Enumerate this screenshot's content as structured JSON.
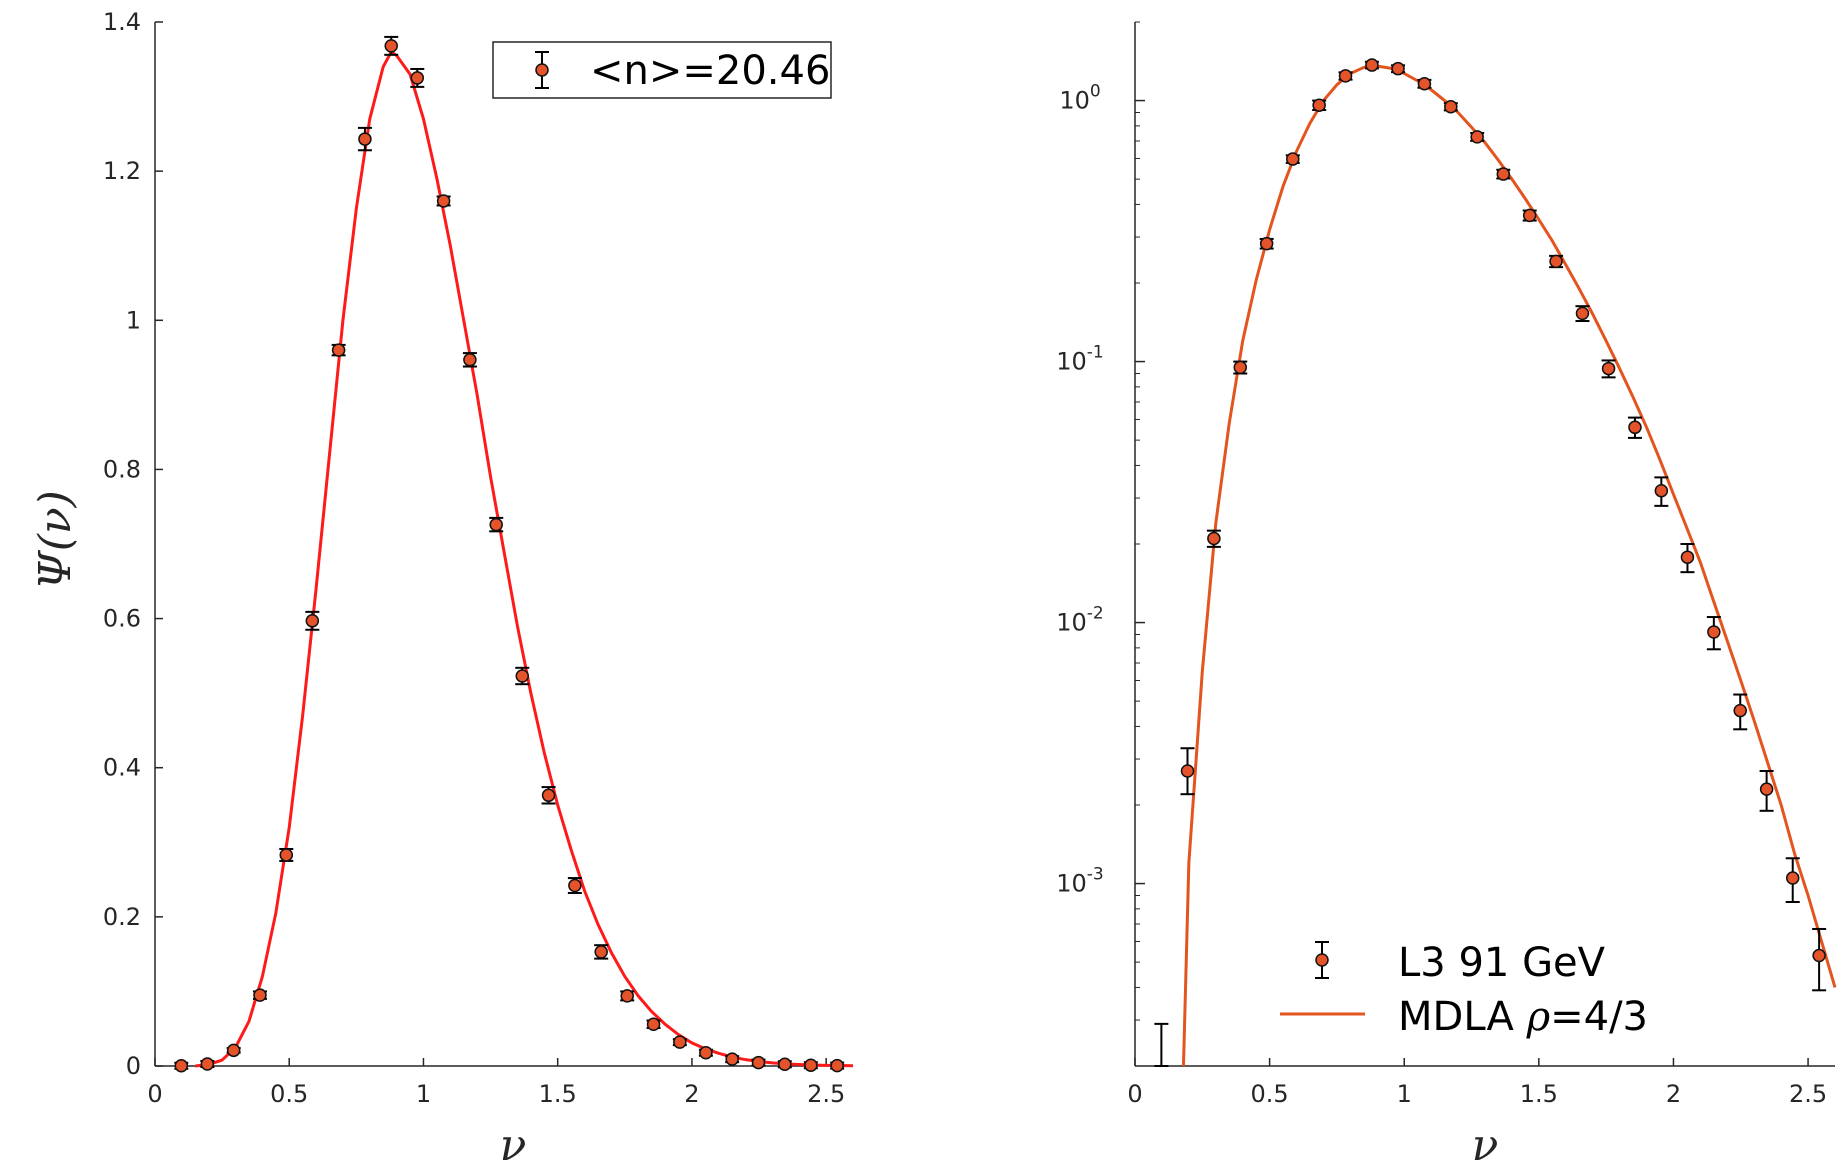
{
  "colors": {
    "marker_fill": "#e5532a",
    "marker_stroke": "#111111",
    "errorbar": "#000000",
    "left_curve": "#ff1a1a",
    "right_curve": "#e4541f",
    "axis": "#262626"
  },
  "chart_data": [
    {
      "type": "scatter",
      "title": "",
      "xlabel": "ν",
      "ylabel": "Ψ(ν)",
      "xlim": [
        0,
        2.6
      ],
      "ylim": [
        0,
        1.4
      ],
      "yscale": "linear",
      "grid": false,
      "legend_position": "top-right",
      "x_ticks": [
        "0",
        "0.5",
        "1",
        "1.5",
        "2",
        "2.5"
      ],
      "x_tick_values": [
        0,
        0.5,
        1,
        1.5,
        2,
        2.5
      ],
      "y_ticks": [
        "0",
        "0.2",
        "0.4",
        "0.6",
        "0.8",
        "1",
        "1.2",
        "1.4"
      ],
      "y_tick_values": [
        0,
        0.2,
        0.4,
        0.6,
        0.8,
        1,
        1.2,
        1.4
      ],
      "legend": [
        {
          "label": "<n>=20.46",
          "symbol": "errorbar-marker"
        }
      ],
      "series": [
        {
          "name": "<n>=20.46",
          "kind": "errorbar-points",
          "x": [
            0.098,
            0.195,
            0.293,
            0.391,
            0.489,
            0.586,
            0.684,
            0.782,
            0.88,
            0.977,
            1.075,
            1.173,
            1.271,
            1.368,
            1.466,
            1.564,
            1.662,
            1.759,
            1.857,
            1.955,
            2.052,
            2.15,
            2.248,
            2.346,
            2.443,
            2.541
          ],
          "y": [
            0.0003,
            0.0027,
            0.021,
            0.095,
            0.283,
            0.597,
            0.96,
            1.243,
            1.368,
            1.325,
            1.16,
            0.947,
            0.726,
            0.523,
            0.363,
            0.242,
            0.153,
            0.094,
            0.056,
            0.032,
            0.0178,
            0.0092,
            0.0046,
            0.0023,
            0.00105,
            0.00053
          ],
          "err": [
            0.0003,
            0.0005,
            0.003,
            0.005,
            0.008,
            0.012,
            0.007,
            0.015,
            0.012,
            0.012,
            0.006,
            0.009,
            0.009,
            0.011,
            0.011,
            0.01,
            0.009,
            0.006,
            0.005,
            0.004,
            0.002,
            0.0015,
            0.0008,
            0.0004,
            0.0002,
            0.00015
          ]
        },
        {
          "name": "",
          "kind": "line",
          "x": [
            0.15,
            0.2,
            0.25,
            0.3,
            0.35,
            0.4,
            0.45,
            0.5,
            0.55,
            0.6,
            0.65,
            0.7,
            0.75,
            0.8,
            0.85,
            0.88,
            0.9,
            0.95,
            1.0,
            1.05,
            1.1,
            1.15,
            1.2,
            1.25,
            1.3,
            1.35,
            1.4,
            1.45,
            1.5,
            1.55,
            1.6,
            1.65,
            1.7,
            1.75,
            1.8,
            1.85,
            1.9,
            1.95,
            2.0,
            2.05,
            2.1,
            2.15,
            2.2,
            2.25,
            2.3,
            2.35,
            2.4,
            2.45,
            2.5,
            2.55,
            2.6
          ],
          "y": [
            0.0,
            0.002,
            0.008,
            0.025,
            0.06,
            0.12,
            0.205,
            0.32,
            0.47,
            0.64,
            0.82,
            1.0,
            1.15,
            1.27,
            1.34,
            1.36,
            1.355,
            1.33,
            1.27,
            1.19,
            1.1,
            1.0,
            0.9,
            0.79,
            0.69,
            0.59,
            0.5,
            0.42,
            0.35,
            0.29,
            0.235,
            0.19,
            0.152,
            0.12,
            0.094,
            0.073,
            0.056,
            0.042,
            0.031,
            0.023,
            0.017,
            0.012,
            0.0085,
            0.006,
            0.0042,
            0.0029,
            0.002,
            0.0013,
            0.0009,
            0.0006,
            0.0004
          ]
        }
      ]
    },
    {
      "type": "scatter",
      "title": "",
      "xlabel": "ν",
      "ylabel": "",
      "xlim": [
        0,
        2.6
      ],
      "ylim": [
        0.0002,
        2
      ],
      "yscale": "log",
      "grid": false,
      "legend_position": "bottom-right",
      "x_ticks": [
        "0",
        "0.5",
        "1",
        "1.5",
        "2",
        "2.5"
      ],
      "x_tick_values": [
        0,
        0.5,
        1,
        1.5,
        2,
        2.5
      ],
      "y_ticks": [
        {
          "mantissa": "10",
          "exponent": "-3",
          "value": 0.001
        },
        {
          "mantissa": "10",
          "exponent": "-2",
          "value": 0.01
        },
        {
          "mantissa": "10",
          "exponent": "-1",
          "value": 0.1
        },
        {
          "mantissa": "10",
          "exponent": "0",
          "value": 1
        }
      ],
      "legend": [
        {
          "label": "L3 91 GeV",
          "symbol": "errorbar-marker"
        },
        {
          "label_main": "MDLA  ",
          "label_rho": "ρ",
          "label_rest": "=4/3",
          "symbol": "line"
        }
      ],
      "series": [
        {
          "name": "L3 91 GeV",
          "kind": "errorbar-points",
          "x": [
            0.098,
            0.195,
            0.293,
            0.391,
            0.489,
            0.586,
            0.684,
            0.782,
            0.88,
            0.977,
            1.075,
            1.173,
            1.271,
            1.368,
            1.466,
            1.564,
            1.662,
            1.759,
            1.857,
            1.955,
            2.052,
            2.15,
            2.248,
            2.346,
            2.443,
            2.541
          ],
          "y": [
            0.0002,
            0.0027,
            0.021,
            0.095,
            0.283,
            0.597,
            0.96,
            1.243,
            1.368,
            1.325,
            1.16,
            0.947,
            0.726,
            0.523,
            0.363,
            0.242,
            0.153,
            0.094,
            0.056,
            0.032,
            0.0178,
            0.0092,
            0.0046,
            0.0023,
            0.00105,
            0.00053
          ],
          "err_lo": [
            0.0001,
            0.0005,
            0.0015,
            0.005,
            0.012,
            0.02,
            0.04,
            0.04,
            0.04,
            0.04,
            0.04,
            0.03,
            0.025,
            0.02,
            0.016,
            0.012,
            0.01,
            0.007,
            0.005,
            0.004,
            0.0022,
            0.0013,
            0.0007,
            0.0004,
            0.0002,
            0.00014
          ],
          "err_hi": [
            9e-05,
            0.0006,
            0.0015,
            0.005,
            0.012,
            0.02,
            0.04,
            0.04,
            0.04,
            0.04,
            0.04,
            0.03,
            0.025,
            0.02,
            0.016,
            0.012,
            0.01,
            0.007,
            0.005,
            0.004,
            0.0022,
            0.0013,
            0.0007,
            0.0004,
            0.0002,
            0.00014
          ]
        },
        {
          "name": "MDLA  ρ=4/3",
          "kind": "line",
          "x": [
            0.18,
            0.2,
            0.25,
            0.3,
            0.35,
            0.4,
            0.45,
            0.5,
            0.55,
            0.6,
            0.65,
            0.7,
            0.75,
            0.8,
            0.85,
            0.88,
            0.9,
            0.95,
            1.0,
            1.05,
            1.1,
            1.15,
            1.2,
            1.25,
            1.3,
            1.35,
            1.4,
            1.45,
            1.5,
            1.55,
            1.6,
            1.65,
            1.7,
            1.75,
            1.8,
            1.85,
            1.9,
            1.95,
            2.0,
            2.05,
            2.1,
            2.15,
            2.2,
            2.25,
            2.3,
            2.35,
            2.4,
            2.45,
            2.5,
            2.55,
            2.6
          ],
          "y": [
            0.0002,
            0.0012,
            0.0065,
            0.024,
            0.058,
            0.12,
            0.205,
            0.32,
            0.47,
            0.64,
            0.82,
            1.0,
            1.15,
            1.27,
            1.34,
            1.36,
            1.355,
            1.33,
            1.27,
            1.19,
            1.1,
            1.0,
            0.9,
            0.79,
            0.69,
            0.59,
            0.5,
            0.42,
            0.35,
            0.29,
            0.235,
            0.19,
            0.152,
            0.12,
            0.094,
            0.073,
            0.056,
            0.042,
            0.031,
            0.023,
            0.017,
            0.012,
            0.0085,
            0.006,
            0.0042,
            0.0029,
            0.002,
            0.0013,
            0.0009,
            0.0006,
            0.0004
          ]
        }
      ]
    }
  ]
}
